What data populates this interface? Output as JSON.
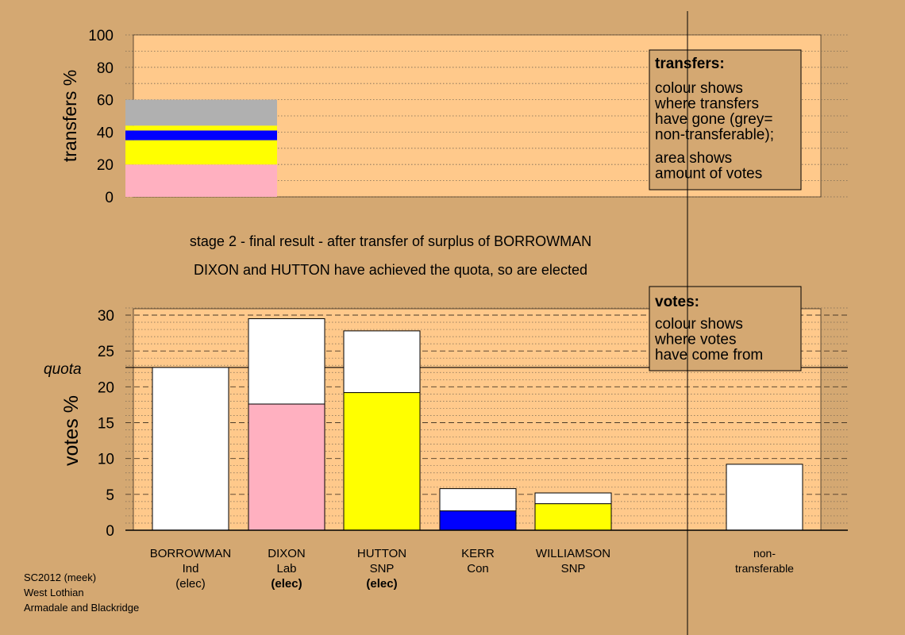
{
  "colors": {
    "background": "#d4a872",
    "plot_area": "#ffc98b",
    "white": "#ffffff",
    "pink": "#ffb0c0",
    "yellow": "#ffff00",
    "blue": "#0000ff",
    "grey": "#b0b0b0"
  },
  "chart_data": [
    {
      "type": "bar",
      "name": "transfers",
      "ylabel": "transfers %",
      "ylim": [
        0,
        100
      ],
      "yticks": [
        0,
        20,
        40,
        60,
        80,
        100
      ],
      "grid": true,
      "stack_segments": [
        {
          "color": "pink",
          "from": 0,
          "to": 20
        },
        {
          "color": "yellow",
          "from": 20,
          "to": 35
        },
        {
          "color": "blue",
          "from": 35,
          "to": 41
        },
        {
          "color": "yellow",
          "from": 41,
          "to": 44
        },
        {
          "color": "grey",
          "from": 44,
          "to": 60
        }
      ],
      "legend": {
        "title": "transfers:",
        "lines": [
          "colour shows",
          "where transfers",
          "have gone (grey=",
          "non-transferable);"
        ],
        "lines2": [
          "area shows",
          "amount of votes"
        ],
        "placement": "top-right"
      }
    },
    {
      "type": "bar",
      "name": "votes",
      "ylabel": "votes %",
      "ylim": [
        0,
        30
      ],
      "yticks": [
        0,
        5,
        10,
        15,
        20,
        25,
        30
      ],
      "grid": true,
      "quota": 22.7,
      "quota_label": "quota",
      "categories": [
        "BORROWMAN",
        "DIXON",
        "HUTTON",
        "KERR",
        "WILLIAMSON",
        "non-transferable"
      ],
      "bars": [
        {
          "name": "BORROWMAN",
          "segments": [
            {
              "color": "white",
              "value": 22.7
            }
          ]
        },
        {
          "name": "DIXON",
          "segments": [
            {
              "color": "pink",
              "value": 17.6
            },
            {
              "color": "white",
              "value": 11.9
            }
          ]
        },
        {
          "name": "HUTTON",
          "segments": [
            {
              "color": "yellow",
              "value": 19.2
            },
            {
              "color": "white",
              "value": 8.6
            }
          ]
        },
        {
          "name": "KERR",
          "segments": [
            {
              "color": "blue",
              "value": 2.7
            },
            {
              "color": "white",
              "value": 3.1
            }
          ]
        },
        {
          "name": "WILLIAMSON",
          "segments": [
            {
              "color": "yellow",
              "value": 3.7
            },
            {
              "color": "white",
              "value": 1.5
            }
          ]
        },
        {
          "name": "non-transferable",
          "segments": [
            {
              "color": "white",
              "value": 9.2
            }
          ]
        }
      ],
      "legend": {
        "title": "votes:",
        "lines": [
          "colour shows",
          "where votes",
          "have come from"
        ],
        "placement": "top-right"
      }
    }
  ],
  "captions": {
    "line1": "stage 2 - final result - after transfer of surplus of BORROWMAN",
    "line2": "DIXON and HUTTON have achieved the quota, so are elected"
  },
  "candidates": [
    {
      "name": "BORROWMAN",
      "party": "Ind",
      "status": "(elec)",
      "status_bold": false
    },
    {
      "name": "DIXON",
      "party": "Lab",
      "status": "(elec)",
      "status_bold": true
    },
    {
      "name": "HUTTON",
      "party": "SNP",
      "status": "(elec)",
      "status_bold": true
    },
    {
      "name": "KERR",
      "party": "Con",
      "status": "",
      "status_bold": false
    },
    {
      "name": "WILLIAMSON",
      "party": "SNP",
      "status": "",
      "status_bold": false
    },
    {
      "name": "non-",
      "party": "transferable",
      "status": "",
      "status_bold": false
    }
  ],
  "footer": {
    "line1": "SC2012 (meek)",
    "line2": "West Lothian",
    "line3": "Armadale and Blackridge"
  }
}
